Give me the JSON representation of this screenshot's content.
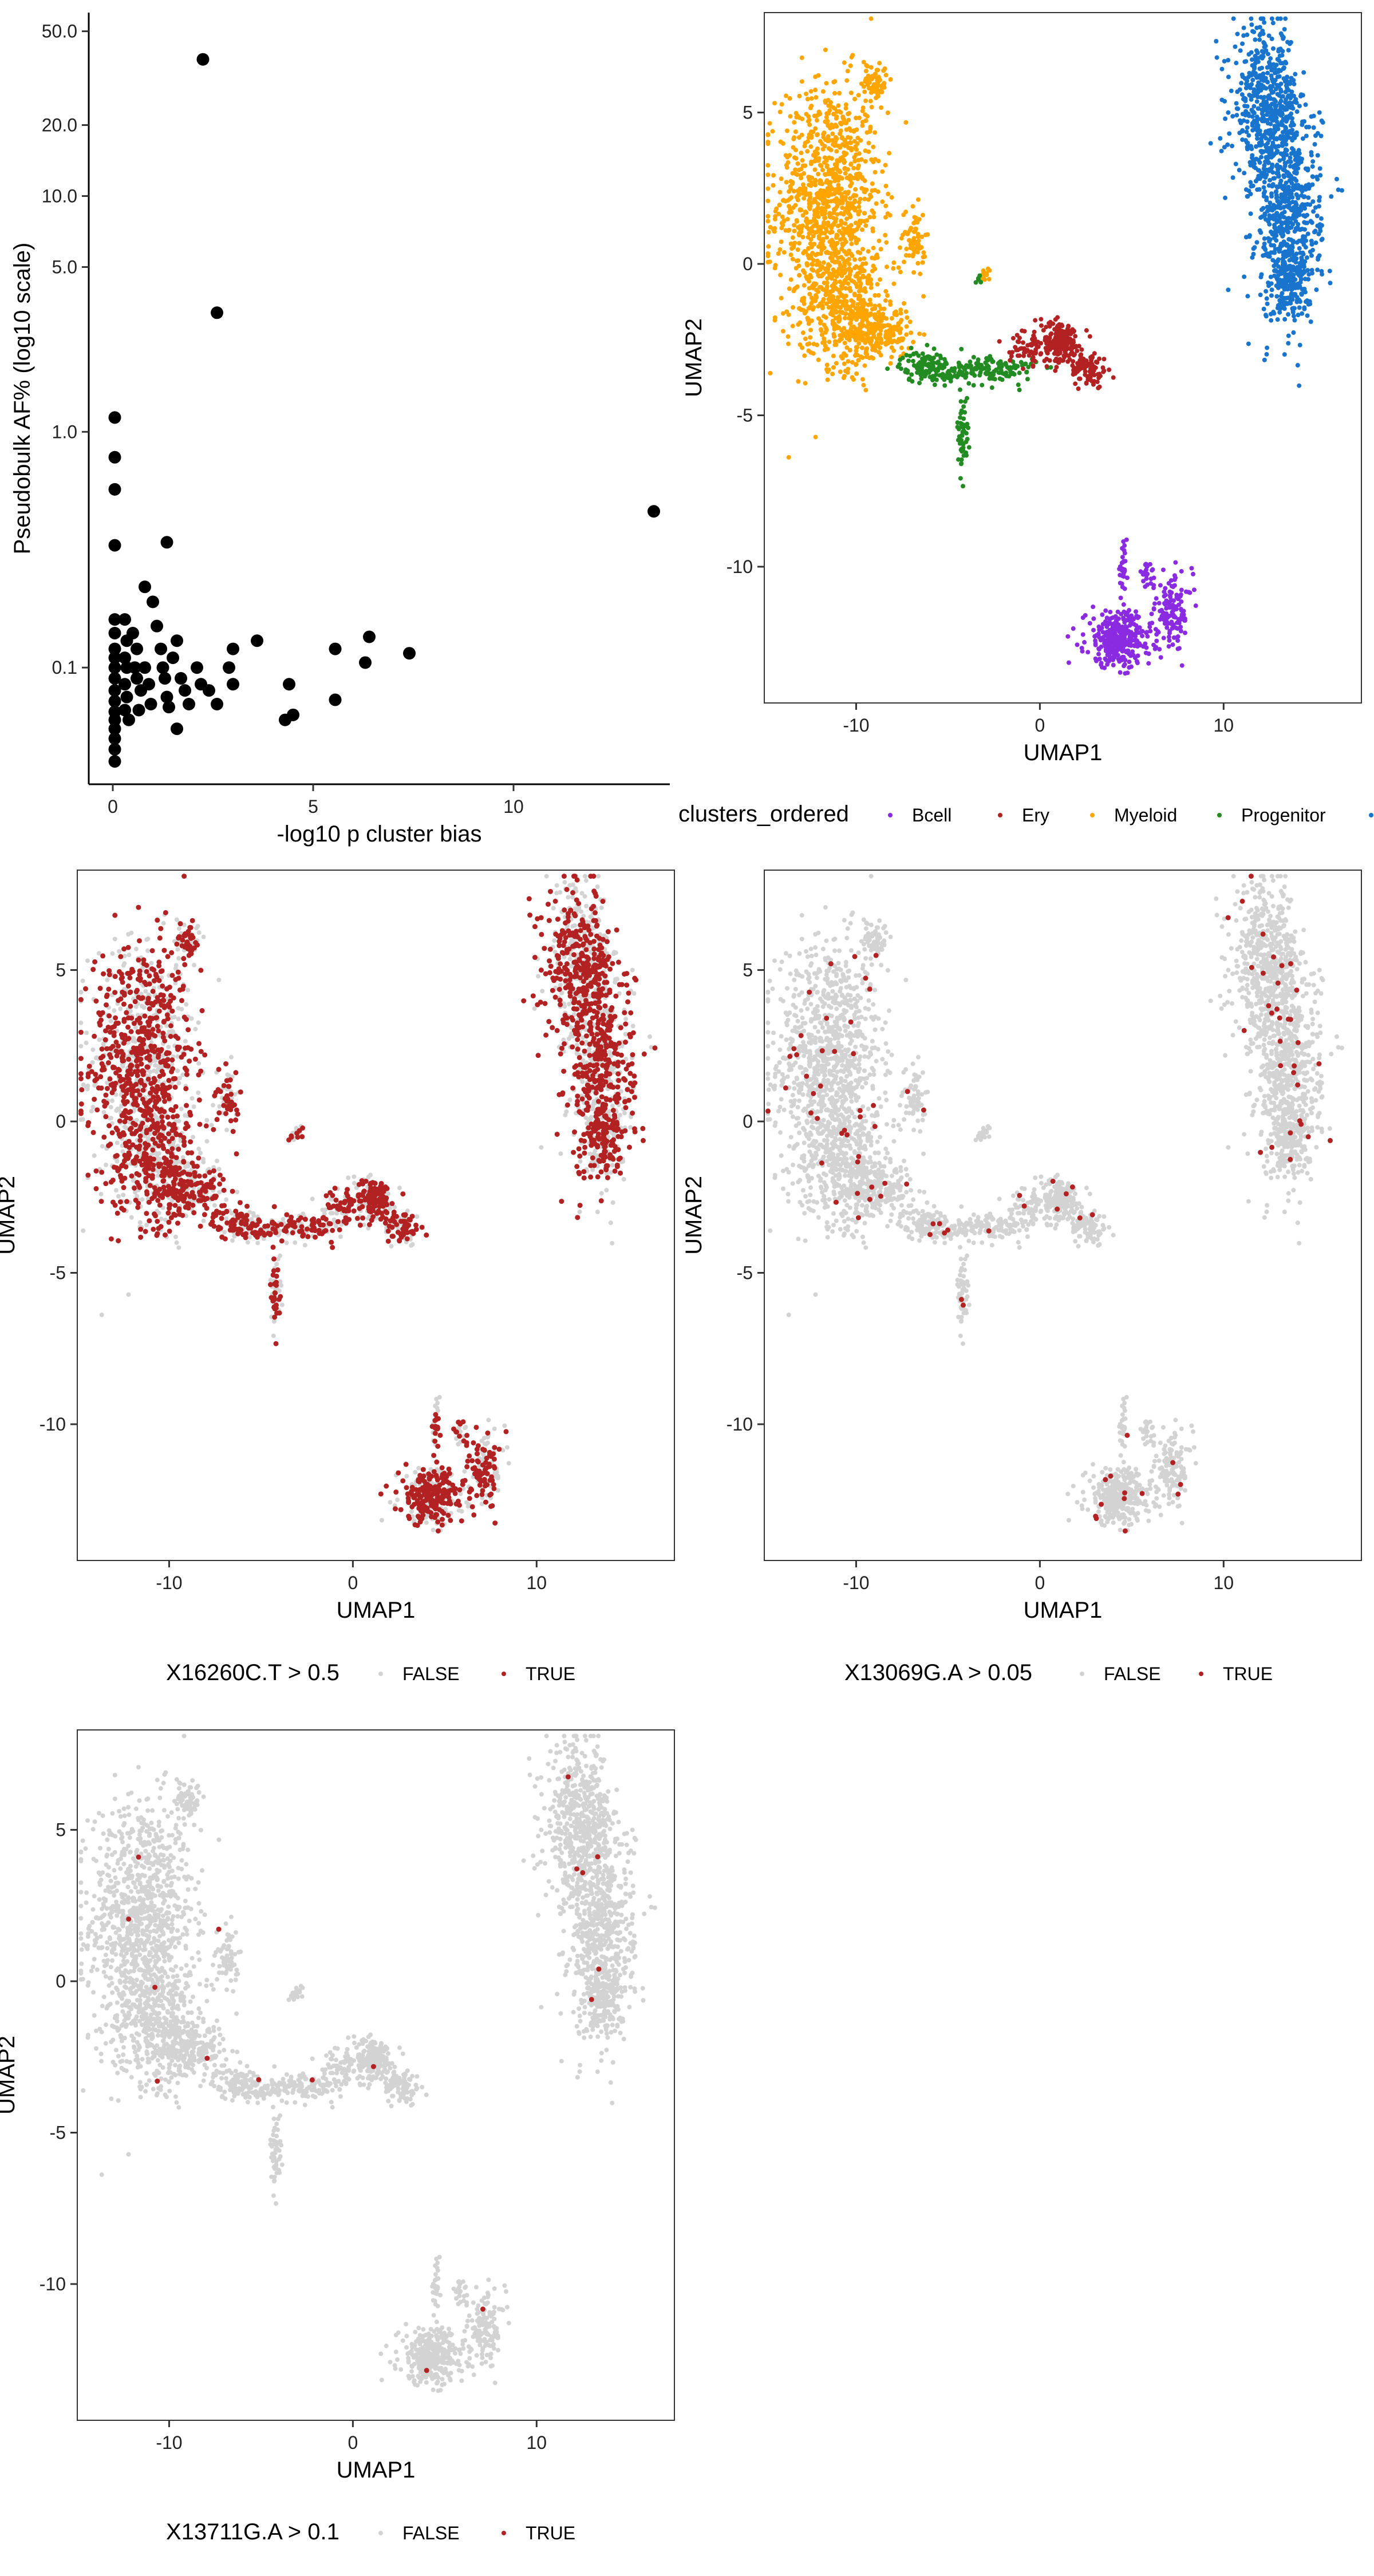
{
  "chart_data": [
    {
      "id": "scatter",
      "type": "scatter",
      "title": "",
      "xlabel": "-log10 p cluster bias",
      "ylabel": "Pseudobulk AF% (log10 scale)",
      "xlim": [
        -0.6,
        13.9
      ],
      "ylim": [
        0.032,
        60
      ],
      "y_scale": "log10",
      "x_ticks": [
        0,
        5,
        10
      ],
      "y_ticks": [
        0.1,
        1.0,
        5.0,
        10.0,
        20.0,
        50.0
      ],
      "y_tick_labels": [
        "0.1",
        "1.0",
        "5.0",
        "10.0",
        "20.0",
        "50.0"
      ],
      "point_color": "#000000",
      "points": [
        [
          2.25,
          38.0
        ],
        [
          2.6,
          3.2
        ],
        [
          0.05,
          1.15
        ],
        [
          0.05,
          0.78
        ],
        [
          0.05,
          0.57
        ],
        [
          0.05,
          0.33
        ],
        [
          1.35,
          0.34
        ],
        [
          13.5,
          0.46
        ],
        [
          0.8,
          0.22
        ],
        [
          1.0,
          0.19
        ],
        [
          0.05,
          0.16
        ],
        [
          0.05,
          0.14
        ],
        [
          0.05,
          0.12
        ],
        [
          0.05,
          0.11
        ],
        [
          0.05,
          0.1
        ],
        [
          0.05,
          0.09
        ],
        [
          0.05,
          0.08
        ],
        [
          0.05,
          0.072
        ],
        [
          0.05,
          0.065
        ],
        [
          0.05,
          0.06
        ],
        [
          0.05,
          0.055
        ],
        [
          0.05,
          0.05
        ],
        [
          0.05,
          0.045
        ],
        [
          0.05,
          0.04
        ],
        [
          0.3,
          0.16
        ],
        [
          0.35,
          0.13
        ],
        [
          0.3,
          0.11
        ],
        [
          0.35,
          0.1
        ],
        [
          0.3,
          0.085
        ],
        [
          0.35,
          0.075
        ],
        [
          0.3,
          0.066
        ],
        [
          0.4,
          0.06
        ],
        [
          0.5,
          0.14
        ],
        [
          0.6,
          0.12
        ],
        [
          0.55,
          0.1
        ],
        [
          0.6,
          0.09
        ],
        [
          0.7,
          0.08
        ],
        [
          0.65,
          0.066
        ],
        [
          0.8,
          0.1
        ],
        [
          0.9,
          0.085
        ],
        [
          0.95,
          0.07
        ],
        [
          1.1,
          0.15
        ],
        [
          1.2,
          0.12
        ],
        [
          1.25,
          0.1
        ],
        [
          1.3,
          0.09
        ],
        [
          1.35,
          0.075
        ],
        [
          1.4,
          0.068
        ],
        [
          1.5,
          0.11
        ],
        [
          1.6,
          0.13
        ],
        [
          1.7,
          0.09
        ],
        [
          1.8,
          0.08
        ],
        [
          1.9,
          0.07
        ],
        [
          1.6,
          0.055
        ],
        [
          2.1,
          0.1
        ],
        [
          2.2,
          0.085
        ],
        [
          2.4,
          0.08
        ],
        [
          2.6,
          0.07
        ],
        [
          2.9,
          0.1
        ],
        [
          3.0,
          0.085
        ],
        [
          3.0,
          0.12
        ],
        [
          3.6,
          0.13
        ],
        [
          4.4,
          0.085
        ],
        [
          4.3,
          0.06
        ],
        [
          4.5,
          0.063
        ],
        [
          5.55,
          0.12
        ],
        [
          5.55,
          0.073
        ],
        [
          6.3,
          0.105
        ],
        [
          6.4,
          0.135
        ],
        [
          7.4,
          0.115
        ]
      ]
    },
    {
      "id": "umap-clusters",
      "type": "scatter",
      "xlabel": "UMAP1",
      "ylabel": "UMAP2",
      "xlim": [
        -15,
        17.5
      ],
      "ylim": [
        -14.5,
        8.3
      ],
      "x_ticks": [
        -10,
        0,
        10
      ],
      "y_ticks": [
        5,
        0,
        -5,
        -10
      ],
      "legend": {
        "title": "clusters_ordered",
        "position": "bottom",
        "entries": [
          {
            "label": "Bcell",
            "color": "#8a2be2"
          },
          {
            "label": "Ery",
            "color": "#b22222"
          },
          {
            "label": "Myeloid",
            "color": "#ffa500"
          },
          {
            "label": "Progenitor",
            "color": "#228b22"
          },
          {
            "label": "",
            "color": "#1874cd"
          }
        ]
      }
    },
    {
      "id": "umap-x16260",
      "type": "scatter",
      "xlabel": "UMAP1",
      "ylabel": "UMAP2",
      "xlim": [
        -15,
        17.5
      ],
      "ylim": [
        -14.5,
        8.3
      ],
      "x_ticks": [
        -10,
        0,
        10
      ],
      "y_ticks": [
        5,
        0,
        -5,
        -10
      ],
      "highlight_fraction": 0.55,
      "legend": {
        "title": "X16260C.T > 0.5",
        "position": "bottom",
        "entries": [
          {
            "label": "FALSE",
            "color": "#d3d3d3"
          },
          {
            "label": "TRUE",
            "color": "#b22222"
          }
        ]
      }
    },
    {
      "id": "umap-x13069",
      "type": "scatter",
      "xlabel": "UMAP1",
      "ylabel": "UMAP2",
      "xlim": [
        -15,
        17.5
      ],
      "ylim": [
        -14.5,
        8.3
      ],
      "x_ticks": [
        -10,
        0,
        10
      ],
      "y_ticks": [
        5,
        0,
        -5,
        -10
      ],
      "highlight_fraction": 0.025,
      "legend": {
        "title": "X13069G.A > 0.05",
        "position": "bottom",
        "entries": [
          {
            "label": "FALSE",
            "color": "#d3d3d3"
          },
          {
            "label": "TRUE",
            "color": "#b22222"
          }
        ]
      }
    },
    {
      "id": "umap-x13711",
      "type": "scatter",
      "xlabel": "UMAP1",
      "ylabel": "UMAP2",
      "xlim": [
        -15,
        17.5
      ],
      "ylim": [
        -14.5,
        8.3
      ],
      "x_ticks": [
        -10,
        0,
        10
      ],
      "y_ticks": [
        5,
        0,
        -5,
        -10
      ],
      "highlight_fraction": 0.004,
      "legend": {
        "title": "X13711G.A > 0.1",
        "position": "bottom",
        "entries": [
          {
            "label": "FALSE",
            "color": "#d3d3d3"
          },
          {
            "label": "TRUE",
            "color": "#b22222"
          }
        ]
      }
    }
  ]
}
